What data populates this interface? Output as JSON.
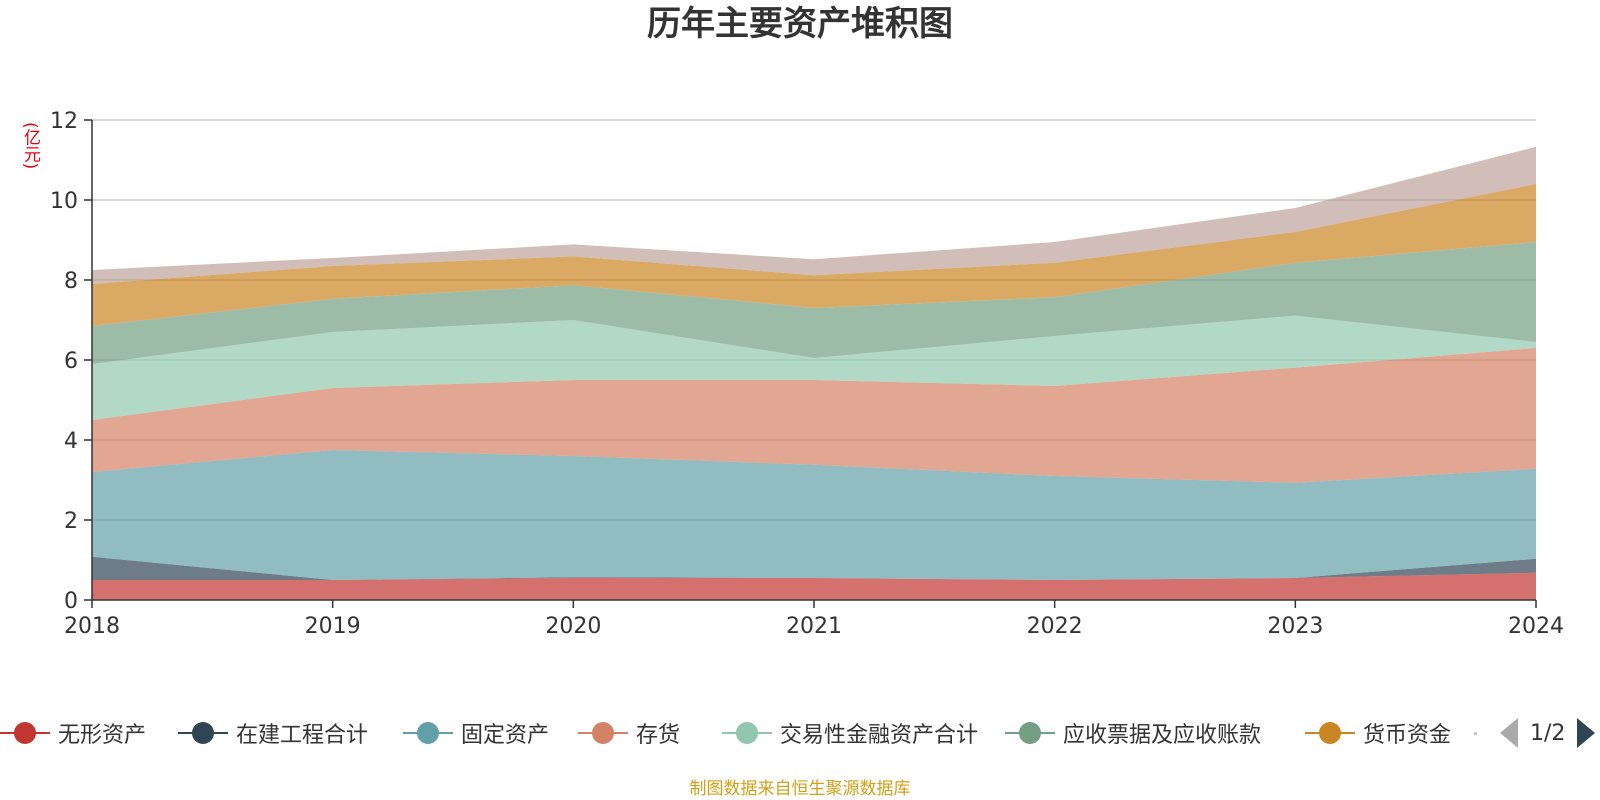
{
  "chart_data": {
    "type": "area",
    "stacked": true,
    "title": "历年主要资产堆积图",
    "unit_label": "(亿元)",
    "x": [
      "2018",
      "2019",
      "2020",
      "2021",
      "2022",
      "2023",
      "2024"
    ],
    "ylim": [
      0,
      12
    ],
    "yticks": [
      0,
      2,
      4,
      6,
      8,
      10,
      12
    ],
    "grid": true,
    "legend_position": "bottom",
    "series": [
      {
        "name": "无形资产",
        "color": "#c23531",
        "values": [
          0.5,
          0.5,
          0.55,
          0.55,
          0.5,
          0.55,
          0.68
        ]
      },
      {
        "name": "在建工程合计",
        "color": "#2f4554",
        "values": [
          0.58,
          0.0,
          0.02,
          0.0,
          0.0,
          0.0,
          0.35
        ]
      },
      {
        "name": "固定资产",
        "color": "#61a0a8",
        "values": [
          2.12,
          3.25,
          3.03,
          2.83,
          2.6,
          2.38,
          2.25
        ]
      },
      {
        "name": "存货",
        "color": "#d48265",
        "values": [
          1.3,
          1.55,
          1.9,
          2.12,
          2.25,
          2.88,
          3.02
        ]
      },
      {
        "name": "交易性金融资产合计",
        "color": "#91c7ae",
        "values": [
          1.4,
          1.4,
          1.5,
          0.55,
          1.25,
          1.3,
          0.15
        ]
      },
      {
        "name": "应收票据及应收账款",
        "color": "#749f83",
        "values": [
          0.95,
          0.83,
          0.87,
          1.25,
          0.97,
          1.32,
          2.5
        ]
      },
      {
        "name": "货币资金",
        "color": "#ca8622",
        "values": [
          1.05,
          0.82,
          0.72,
          0.82,
          0.86,
          0.77,
          1.45
        ]
      },
      {
        "name": "",
        "color": "#bda29a",
        "values": [
          0.35,
          0.2,
          0.3,
          0.4,
          0.52,
          0.6,
          0.93
        ]
      }
    ]
  },
  "legend": {
    "page_indicator": "1/2"
  },
  "source_note": "制图数据来自恒生聚源数据库"
}
